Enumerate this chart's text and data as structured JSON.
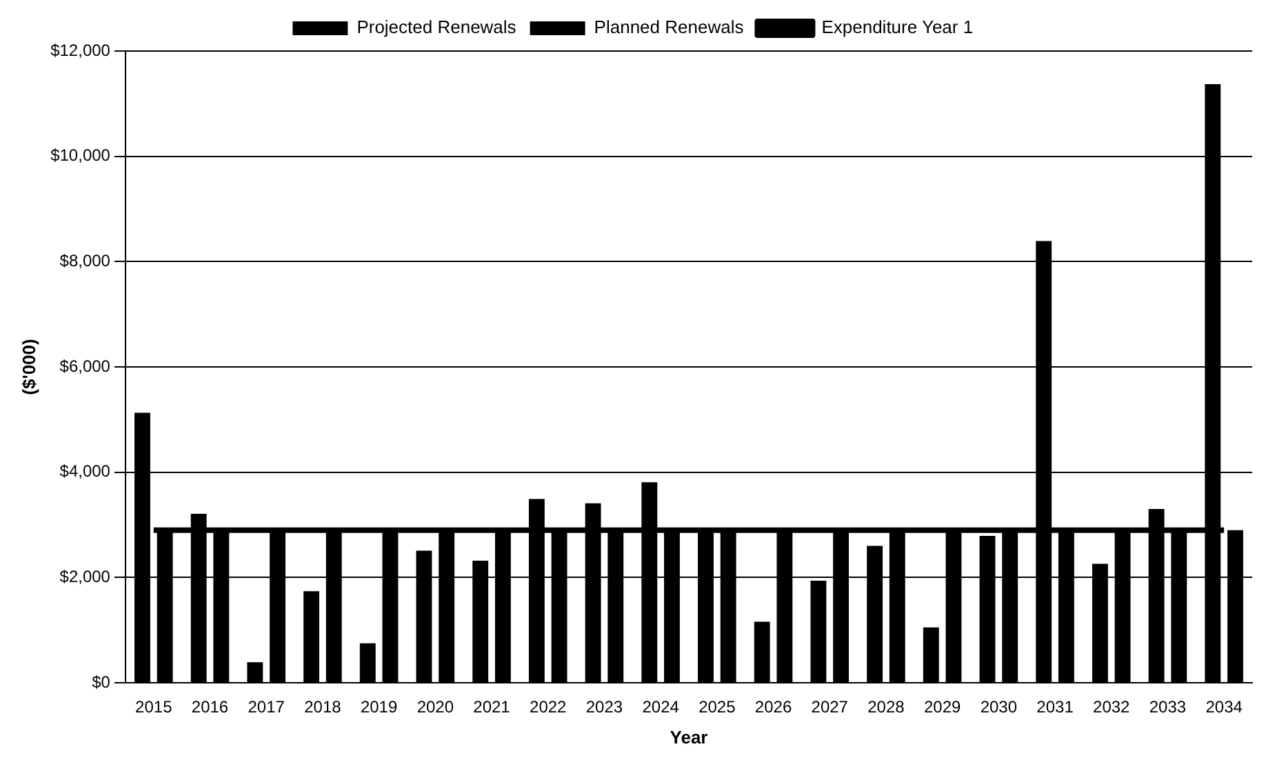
{
  "chart_data": {
    "type": "bar",
    "xlabel": "Year",
    "ylabel": "($'000)",
    "categories": [
      "2015",
      "2016",
      "2017",
      "2018",
      "2019",
      "2020",
      "2021",
      "2022",
      "2023",
      "2024",
      "2025",
      "2026",
      "2027",
      "2028",
      "2029",
      "2030",
      "2031",
      "2032",
      "2033",
      "2034"
    ],
    "series": [
      {
        "name": "Projected Renewals",
        "color": "#000000",
        "values": [
          5130,
          3210,
          390,
          1740,
          750,
          2510,
          2320,
          3490,
          3410,
          3810,
          2900,
          1160,
          1940,
          2600,
          1050,
          2790,
          8390,
          2260,
          3300,
          11370
        ]
      },
      {
        "name": "Planned Renewals",
        "color": "#000000",
        "values": [
          2900,
          2900,
          2900,
          2900,
          2900,
          2900,
          2900,
          2900,
          2900,
          2900,
          2900,
          2900,
          2900,
          2900,
          2900,
          2900,
          2900,
          2900,
          2900,
          2900
        ]
      },
      {
        "name": "Expenditure Year 1",
        "type": "line",
        "color": "#000000",
        "values": [
          2900,
          2900,
          2900,
          2900,
          2900,
          2900,
          2900,
          2900,
          2900,
          2900,
          2900,
          2900,
          2900,
          2900,
          2900,
          2900,
          2900,
          2900,
          2900,
          2900
        ]
      }
    ],
    "ylim": [
      0,
      12000
    ],
    "yticks": [
      {
        "value": 0,
        "label": "$0"
      },
      {
        "value": 2000,
        "label": "$2,000"
      },
      {
        "value": 4000,
        "label": "$4,000"
      },
      {
        "value": 6000,
        "label": "$6,000"
      },
      {
        "value": 8000,
        "label": "$8,000"
      },
      {
        "value": 10000,
        "label": "$10,000"
      },
      {
        "value": 12000,
        "label": "$12,000"
      }
    ],
    "grid": "y",
    "legend": "top",
    "marker": "none"
  }
}
